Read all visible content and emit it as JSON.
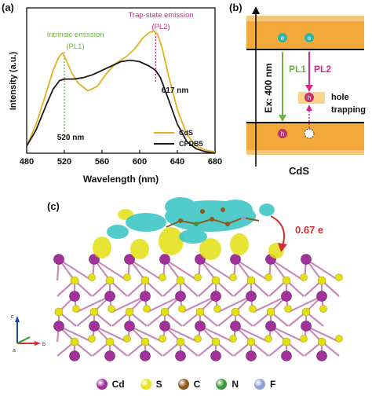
{
  "panel_a": {
    "label": "(a)",
    "annot_pl1_title": "Intrinsic emission",
    "annot_pl1": "(PL1)",
    "annot_pl2_title": "Trap-state emission",
    "annot_pl2": "(PL2)",
    "peak1_label": "520 nm",
    "peak2_label": "617 nm",
    "pl1_color": "#6fb043",
    "pl2_color": "#d6288a"
  },
  "panel_b": {
    "label": "(b)",
    "pl1": "PL1",
    "pl2": "PL2",
    "excitation": "Ex: 400 nm",
    "hole_trapping_1": "hole",
    "hole_trapping_2": "trapping",
    "material": "CdS",
    "electron_symbol": "e",
    "hole_symbol": "h",
    "band_color": "#f3a93a",
    "band_edge_color": "#f6c77a",
    "trap_color": "#fbd38a",
    "electron_color": "#2fb3a8",
    "hole_color": "#c4306c",
    "pl1_color": "#6fb043",
    "pl2_color": "#d6288a"
  },
  "panel_c": {
    "label": "(c)",
    "charge_transfer": "0.67 e",
    "charge_color": "#d32f2f",
    "cd_color": "#a0329a",
    "s_color": "#e3e012",
    "cyan_color": "#33c4c2",
    "axis_z": "c",
    "axis_x": "b",
    "axis_y": "a"
  },
  "element_legend": [
    {
      "symbol": "Cd",
      "color": "#a0329a"
    },
    {
      "symbol": "S",
      "color": "#e8e41c"
    },
    {
      "symbol": "C",
      "color": "#8a5a1e"
    },
    {
      "symbol": "N",
      "color": "#3a9a3a"
    },
    {
      "symbol": "F",
      "color": "#8ea0d8"
    }
  ],
  "chart_data": {
    "type": "line",
    "title": "",
    "xlabel": "Wavelength (nm)",
    "ylabel": "Intensity (a.u.)",
    "xlim": [
      480,
      680
    ],
    "x_ticks": [
      480,
      520,
      560,
      600,
      640,
      680
    ],
    "y_ticks": [],
    "grid": false,
    "legend_position": "bottom-right",
    "series": [
      {
        "name": "CdS",
        "color": "#e3b21e",
        "x": [
          480,
          490,
          500,
          508,
          514,
          518,
          522,
          528,
          535,
          545,
          555,
          565,
          575,
          585,
          595,
          603,
          610,
          615,
          619,
          624,
          630,
          640,
          650,
          660,
          670,
          680
        ],
        "y": [
          0.05,
          0.2,
          0.4,
          0.57,
          0.66,
          0.69,
          0.64,
          0.55,
          0.48,
          0.43,
          0.46,
          0.55,
          0.62,
          0.66,
          0.72,
          0.79,
          0.83,
          0.84,
          0.82,
          0.72,
          0.55,
          0.3,
          0.13,
          0.05,
          0.02,
          0.01
        ]
      },
      {
        "name": "CPDB5",
        "color": "#1a1a1a",
        "x": [
          480,
          490,
          500,
          508,
          515,
          520,
          530,
          540,
          550,
          560,
          570,
          580,
          590,
          600,
          610,
          617,
          622,
          630,
          640,
          650,
          660,
          670,
          680
        ],
        "y": [
          0.05,
          0.16,
          0.32,
          0.44,
          0.5,
          0.51,
          0.51,
          0.52,
          0.54,
          0.57,
          0.6,
          0.63,
          0.64,
          0.63,
          0.6,
          0.57,
          0.52,
          0.38,
          0.2,
          0.08,
          0.03,
          0.01,
          0.0
        ]
      }
    ],
    "annotations": [
      {
        "x": 520,
        "label": "520 nm"
      },
      {
        "x": 617,
        "label": "617 nm"
      }
    ]
  }
}
